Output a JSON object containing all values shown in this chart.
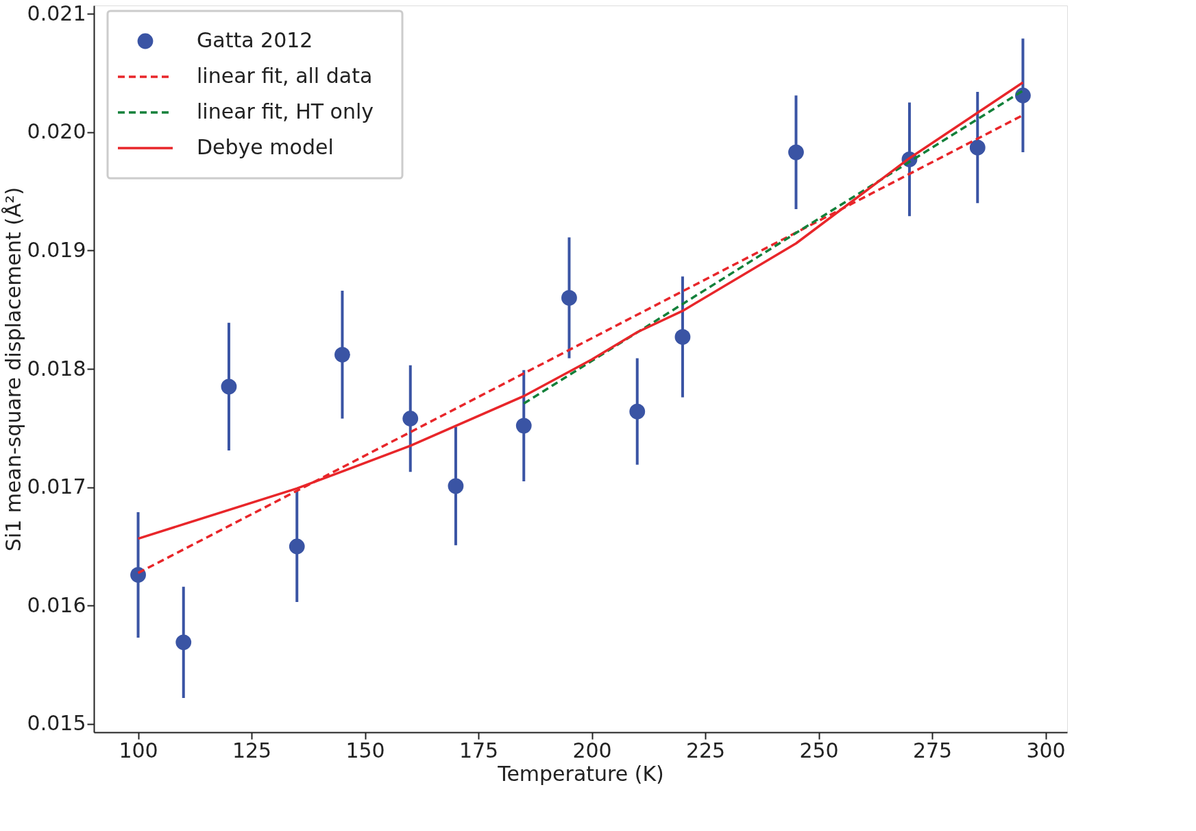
{
  "chart_data": {
    "type": "scatter",
    "xlabel": "Temperature (K)",
    "ylabel": "Si1 mean-square displacement (Å²)",
    "xlim": [
      90.25,
      304.75
    ],
    "ylim": [
      0.01493,
      0.02107
    ],
    "xticks": [
      100,
      125,
      150,
      175,
      200,
      225,
      250,
      275,
      300
    ],
    "yticks": [
      0.015,
      0.016,
      0.017,
      0.018,
      0.019,
      {
        "value": 0.02,
        "label": "0.020"
      },
      0.021
    ],
    "grid": false,
    "legend": "top left",
    "series": [
      {
        "name": "Gatta 2012",
        "marker": "circle",
        "color": "#3a54a4",
        "x": [
          100,
          110,
          120,
          135,
          145,
          160,
          170,
          185,
          195,
          210,
          220,
          245,
          270,
          285,
          295
        ],
        "values": [
          0.01626,
          0.01569,
          0.01785,
          0.0165,
          0.01812,
          0.01758,
          0.01701,
          0.01752,
          0.0186,
          0.01764,
          0.01827,
          0.01983,
          0.01977,
          0.01987,
          0.02031
        ],
        "errors": [
          0.00053,
          0.00047,
          0.00054,
          0.00047,
          0.00054,
          0.00045,
          0.0005,
          0.00047,
          0.00051,
          0.00045,
          0.00051,
          0.00048,
          0.00048,
          0.00047,
          0.00048
        ]
      },
      {
        "name": "linear fit, all data",
        "type": "line",
        "line_style": "dashed",
        "color": "#e8262a",
        "x": [
          100,
          295
        ],
        "values": [
          0.016276,
          0.020143
        ]
      },
      {
        "name": "linear fit, HT only",
        "type": "line",
        "line_style": "dashed",
        "color": "#13803a",
        "x": [
          185,
          295
        ],
        "values": [
          0.017707,
          0.02035
        ]
      },
      {
        "name": "Debye model",
        "type": "line",
        "line_style": "solid",
        "color": "#e8262a",
        "x": [
          100,
          135,
          160,
          185,
          200,
          210,
          220,
          245,
          270,
          295
        ],
        "values": [
          0.016566,
          0.01699,
          0.01735,
          0.01777,
          0.01808,
          0.01831,
          0.01849,
          0.01906,
          0.01978,
          0.02042
        ]
      }
    ]
  }
}
